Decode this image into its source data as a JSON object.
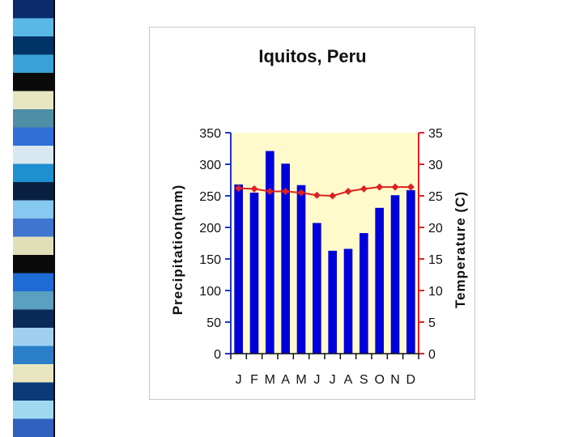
{
  "slide": {
    "stripe_colors": [
      "#0a2a6b",
      "#59b8e6",
      "#003366",
      "#3aa0d8",
      "#0a0a0a",
      "#e8e6c0",
      "#4f8fa6",
      "#2f6fd6",
      "#d8e8f0",
      "#1e90d0",
      "#0a2040",
      "#87c8f0",
      "#3f75d0",
      "#e0dfb8",
      "#0a0a0a",
      "#1f6bd6",
      "#5aa0c0",
      "#0a2a5a",
      "#9fd0f0",
      "#2b7fc8",
      "#e8e6c0",
      "#0a3a7a",
      "#a0d8f0",
      "#3060c0"
    ]
  },
  "chart_data": {
    "type": "bar",
    "title": "Iquitos, Peru",
    "ylabel": "Precipitation(mm)",
    "y2label": "Temperature (C)",
    "categories": [
      "J",
      "F",
      "M",
      "A",
      "M",
      "J",
      "J",
      "A",
      "S",
      "O",
      "N",
      "D"
    ],
    "ylim": [
      0,
      350
    ],
    "y2lim": [
      0,
      35
    ],
    "yticks": [
      "0",
      "50",
      "100",
      "150",
      "200",
      "250",
      "300",
      "350"
    ],
    "y2ticks": [
      "0",
      "5",
      "10",
      "15",
      "20",
      "25",
      "30",
      "35"
    ],
    "series": [
      {
        "kind": "bar",
        "axis": "left",
        "color": "#0000dd",
        "values": [
          268,
          255,
          321,
          301,
          267,
          207,
          163,
          166,
          191,
          231,
          251,
          259
        ]
      },
      {
        "kind": "line",
        "axis": "right",
        "color": "#dd2222",
        "values": [
          26.2,
          26.1,
          25.7,
          25.7,
          25.5,
          25.1,
          25.0,
          25.7,
          26.1,
          26.4,
          26.4,
          26.4
        ]
      }
    ],
    "plot_background": "#fffacc",
    "grid": false,
    "legend": "none"
  }
}
